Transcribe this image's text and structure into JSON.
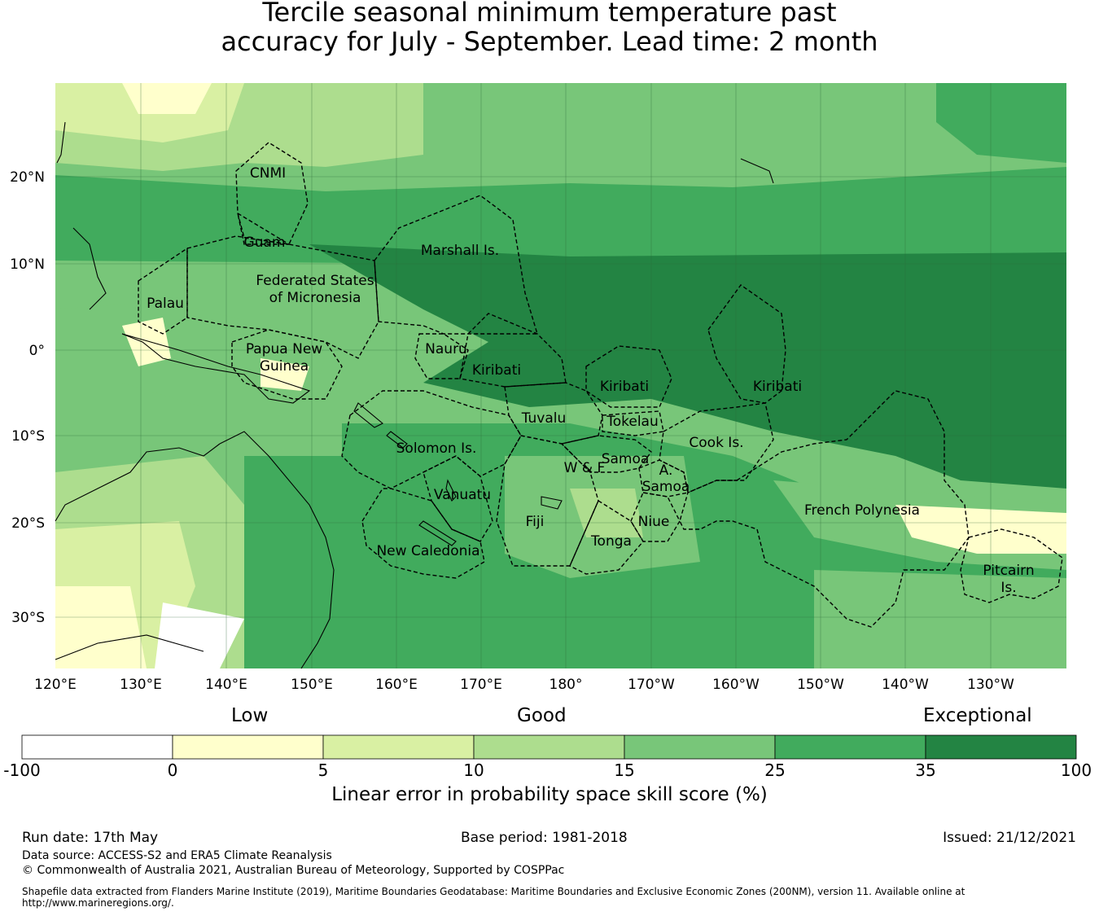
{
  "title_line1": "Tercile seasonal minimum temperature past",
  "title_line2": "accuracy for July - September. Lead time: 2 month",
  "lat_labels": [
    "20°N",
    "10°N",
    "0°",
    "10°S",
    "20°S",
    "30°S"
  ],
  "lon_labels": [
    "120°E",
    "130°E",
    "140°E",
    "150°E",
    "160°E",
    "170°E",
    "180°",
    "170°W",
    "160°W",
    "150°W",
    "140°W",
    "130°W"
  ],
  "regions": [
    {
      "name": "CNMI"
    },
    {
      "name": "Guam"
    },
    {
      "name": "Marshall Is."
    },
    {
      "name": "Federated States"
    },
    {
      "name": "of Micronesia"
    },
    {
      "name": "Palau"
    },
    {
      "name": "Papua New"
    },
    {
      "name": "Guinea"
    },
    {
      "name": "Nauru"
    },
    {
      "name": "Kiribati"
    },
    {
      "name": "Kiribati"
    },
    {
      "name": "Kiribati"
    },
    {
      "name": "Tuvalu"
    },
    {
      "name": "Tokelau"
    },
    {
      "name": "Solomon Is."
    },
    {
      "name": "Samoa"
    },
    {
      "name": "W & F"
    },
    {
      "name": "A."
    },
    {
      "name": "Samoa"
    },
    {
      "name": "Cook Is."
    },
    {
      "name": "Vanuatu"
    },
    {
      "name": "Fiji"
    },
    {
      "name": "Niue"
    },
    {
      "name": "Tonga"
    },
    {
      "name": "French Polynesia"
    },
    {
      "name": "New Caledonia"
    },
    {
      "name": "Pitcairn"
    },
    {
      "name": "Is."
    }
  ],
  "colorbar": {
    "category_low": "Low",
    "category_good": "Good",
    "category_exceptional": "Exceptional",
    "ticks": [
      "-100",
      "0",
      "5",
      "10",
      "15",
      "25",
      "35",
      "100"
    ],
    "colors": [
      "#ffffff",
      "#ffffcc",
      "#d9f0a3",
      "#addd8e",
      "#78c679",
      "#41ab5d",
      "#238443"
    ],
    "label": "Linear error in probability space skill score (%)"
  },
  "footer": {
    "run_date": "Run date: 17th May",
    "base_period": "Base period: 1981-2018",
    "issued": "Issued: 21/12/2021",
    "data_source": "Data source: ACCESS-S2 and ERA5 Climate Reanalysis",
    "copyright": "© Commonwealth of Australia 2021, Australian Bureau of Meteorology, Supported by COSPPac",
    "shapefile_line1": "Shapefile data extracted from Flanders Marine Institute (2019), Maritime Boundaries Geodatabase: Maritime Boundaries and Exclusive Economic Zones (200NM), version 11. Available online at",
    "shapefile_line2": "http://www.marineregions.org/."
  }
}
